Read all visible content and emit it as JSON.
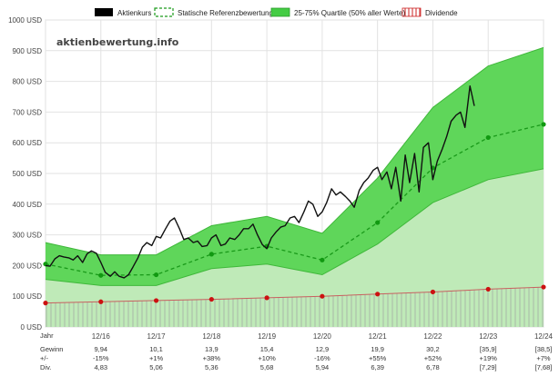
{
  "watermark": "aktienbewertung.info",
  "chart_data": {
    "type": "line",
    "x_labels": [
      "12/16",
      "12/17",
      "12/18",
      "12/19",
      "12/20",
      "12/21",
      "12/22",
      "12/23",
      "12/24"
    ],
    "y_unit": "USD",
    "yticks": [
      0,
      100,
      200,
      300,
      400,
      500,
      600,
      700,
      800,
      900,
      1000
    ],
    "ytick_labels": [
      "0 USD",
      "100 USD",
      "200 USD",
      "300 USD",
      "400 USD",
      "500 USD",
      "600 USD",
      "700 USD",
      "800 USD",
      "900 USD",
      "1000 USD"
    ],
    "ylim": [
      0,
      1000
    ],
    "xlim": [
      2015.0,
      2024.0
    ],
    "grid": true,
    "legend_position": "top",
    "legend": [
      {
        "label": "Aktienkurs",
        "kind": "solid",
        "color": "#000000"
      },
      {
        "label": "Statische Referenzbewertung",
        "kind": "dashed",
        "color": "#1a9a1a"
      },
      {
        "label": "25-75% Quartile (50% aller Werte)",
        "kind": "band",
        "color": "#44cc44"
      },
      {
        "label": "Dividende",
        "kind": "hatch",
        "color": "#cc2222"
      }
    ],
    "band": {
      "x": [
        2015.0,
        2016.0,
        2017.0,
        2018.0,
        2019.0,
        2020.0,
        2021.0,
        2022.0,
        2023.0,
        2024.0
      ],
      "upper": [
        275,
        235,
        235,
        330,
        360,
        305,
        485,
        715,
        850,
        910
      ],
      "lower": [
        155,
        135,
        135,
        190,
        205,
        170,
        270,
        405,
        480,
        515
      ]
    },
    "reference": {
      "x": [
        2015.0,
        2016.0,
        2017.0,
        2018.0,
        2019.0,
        2020.0,
        2021.0,
        2022.0,
        2023.0,
        2024.0
      ],
      "y": [
        205,
        168,
        170,
        237,
        263,
        218,
        340,
        518,
        617,
        660
      ]
    },
    "dividend": {
      "x": [
        2015.0,
        2016.0,
        2017.0,
        2018.0,
        2019.0,
        2020.0,
        2021.0,
        2022.0,
        2023.0,
        2024.0
      ],
      "y": [
        78,
        82,
        86,
        90,
        95,
        100,
        107,
        114,
        123,
        130
      ]
    },
    "price": {
      "x": [
        2015.0,
        2015.08,
        2015.17,
        2015.25,
        2015.33,
        2015.42,
        2015.5,
        2015.58,
        2015.67,
        2015.75,
        2015.83,
        2015.92,
        2016.0,
        2016.08,
        2016.17,
        2016.25,
        2016.33,
        2016.42,
        2016.5,
        2016.58,
        2016.67,
        2016.75,
        2016.83,
        2016.92,
        2017.0,
        2017.08,
        2017.17,
        2017.25,
        2017.33,
        2017.42,
        2017.5,
        2017.58,
        2017.67,
        2017.75,
        2017.83,
        2017.92,
        2018.0,
        2018.08,
        2018.17,
        2018.25,
        2018.33,
        2018.42,
        2018.5,
        2018.58,
        2018.67,
        2018.75,
        2018.83,
        2018.92,
        2019.0,
        2019.08,
        2019.17,
        2019.25,
        2019.33,
        2019.42,
        2019.5,
        2019.58,
        2019.67,
        2019.75,
        2019.83,
        2019.92,
        2020.0,
        2020.08,
        2020.17,
        2020.25,
        2020.33,
        2020.42,
        2020.5,
        2020.58,
        2020.67,
        2020.75,
        2020.83,
        2020.92,
        2021.0,
        2021.08,
        2021.17,
        2021.25,
        2021.33,
        2021.42,
        2021.5,
        2021.58,
        2021.67,
        2021.75,
        2021.83,
        2021.92,
        2022.0,
        2022.08,
        2022.17,
        2022.25,
        2022.33,
        2022.42,
        2022.5,
        2022.58,
        2022.67,
        2022.75
      ],
      "y": [
        200,
        198,
        222,
        232,
        228,
        225,
        218,
        232,
        210,
        238,
        248,
        240,
        210,
        178,
        165,
        180,
        165,
        160,
        170,
        195,
        225,
        260,
        275,
        265,
        295,
        290,
        320,
        345,
        355,
        320,
        285,
        290,
        275,
        280,
        262,
        265,
        290,
        300,
        265,
        270,
        290,
        285,
        300,
        320,
        320,
        335,
        300,
        268,
        255,
        290,
        310,
        325,
        330,
        355,
        360,
        340,
        375,
        410,
        400,
        360,
        375,
        405,
        450,
        430,
        440,
        425,
        410,
        390,
        445,
        470,
        485,
        510,
        520,
        480,
        505,
        450,
        520,
        410,
        560,
        470,
        565,
        440,
        585,
        600,
        480,
        540,
        580,
        620,
        670,
        690,
        700,
        650,
        785,
        720
      ]
    },
    "table": {
      "row_labels": [
        "Jahr",
        "Gewinn",
        "+/-",
        "Div."
      ],
      "columns": [
        {
          "year": "12/16",
          "gewinn": "9,94",
          "change": "-15%",
          "div": "4,83"
        },
        {
          "year": "12/17",
          "gewinn": "10,1",
          "change": "+1%",
          "div": "5,06"
        },
        {
          "year": "12/18",
          "gewinn": "13,9",
          "change": "+38%",
          "div": "5,36"
        },
        {
          "year": "12/19",
          "gewinn": "15,4",
          "change": "+10%",
          "div": "5,68"
        },
        {
          "year": "12/20",
          "gewinn": "12,9",
          "change": "-16%",
          "div": "5,94"
        },
        {
          "year": "12/21",
          "gewinn": "19,9",
          "change": "+55%",
          "div": "6,39"
        },
        {
          "year": "12/22",
          "gewinn": "30,2",
          "change": "+52%",
          "div": "6,78"
        },
        {
          "year": "12/23",
          "gewinn": "[35,9]",
          "change": "+19%",
          "div": "[7,29]"
        },
        {
          "year": "12/24",
          "gewinn": "[38,5]",
          "change": "+7%",
          "div": "[7,68]"
        }
      ]
    }
  }
}
